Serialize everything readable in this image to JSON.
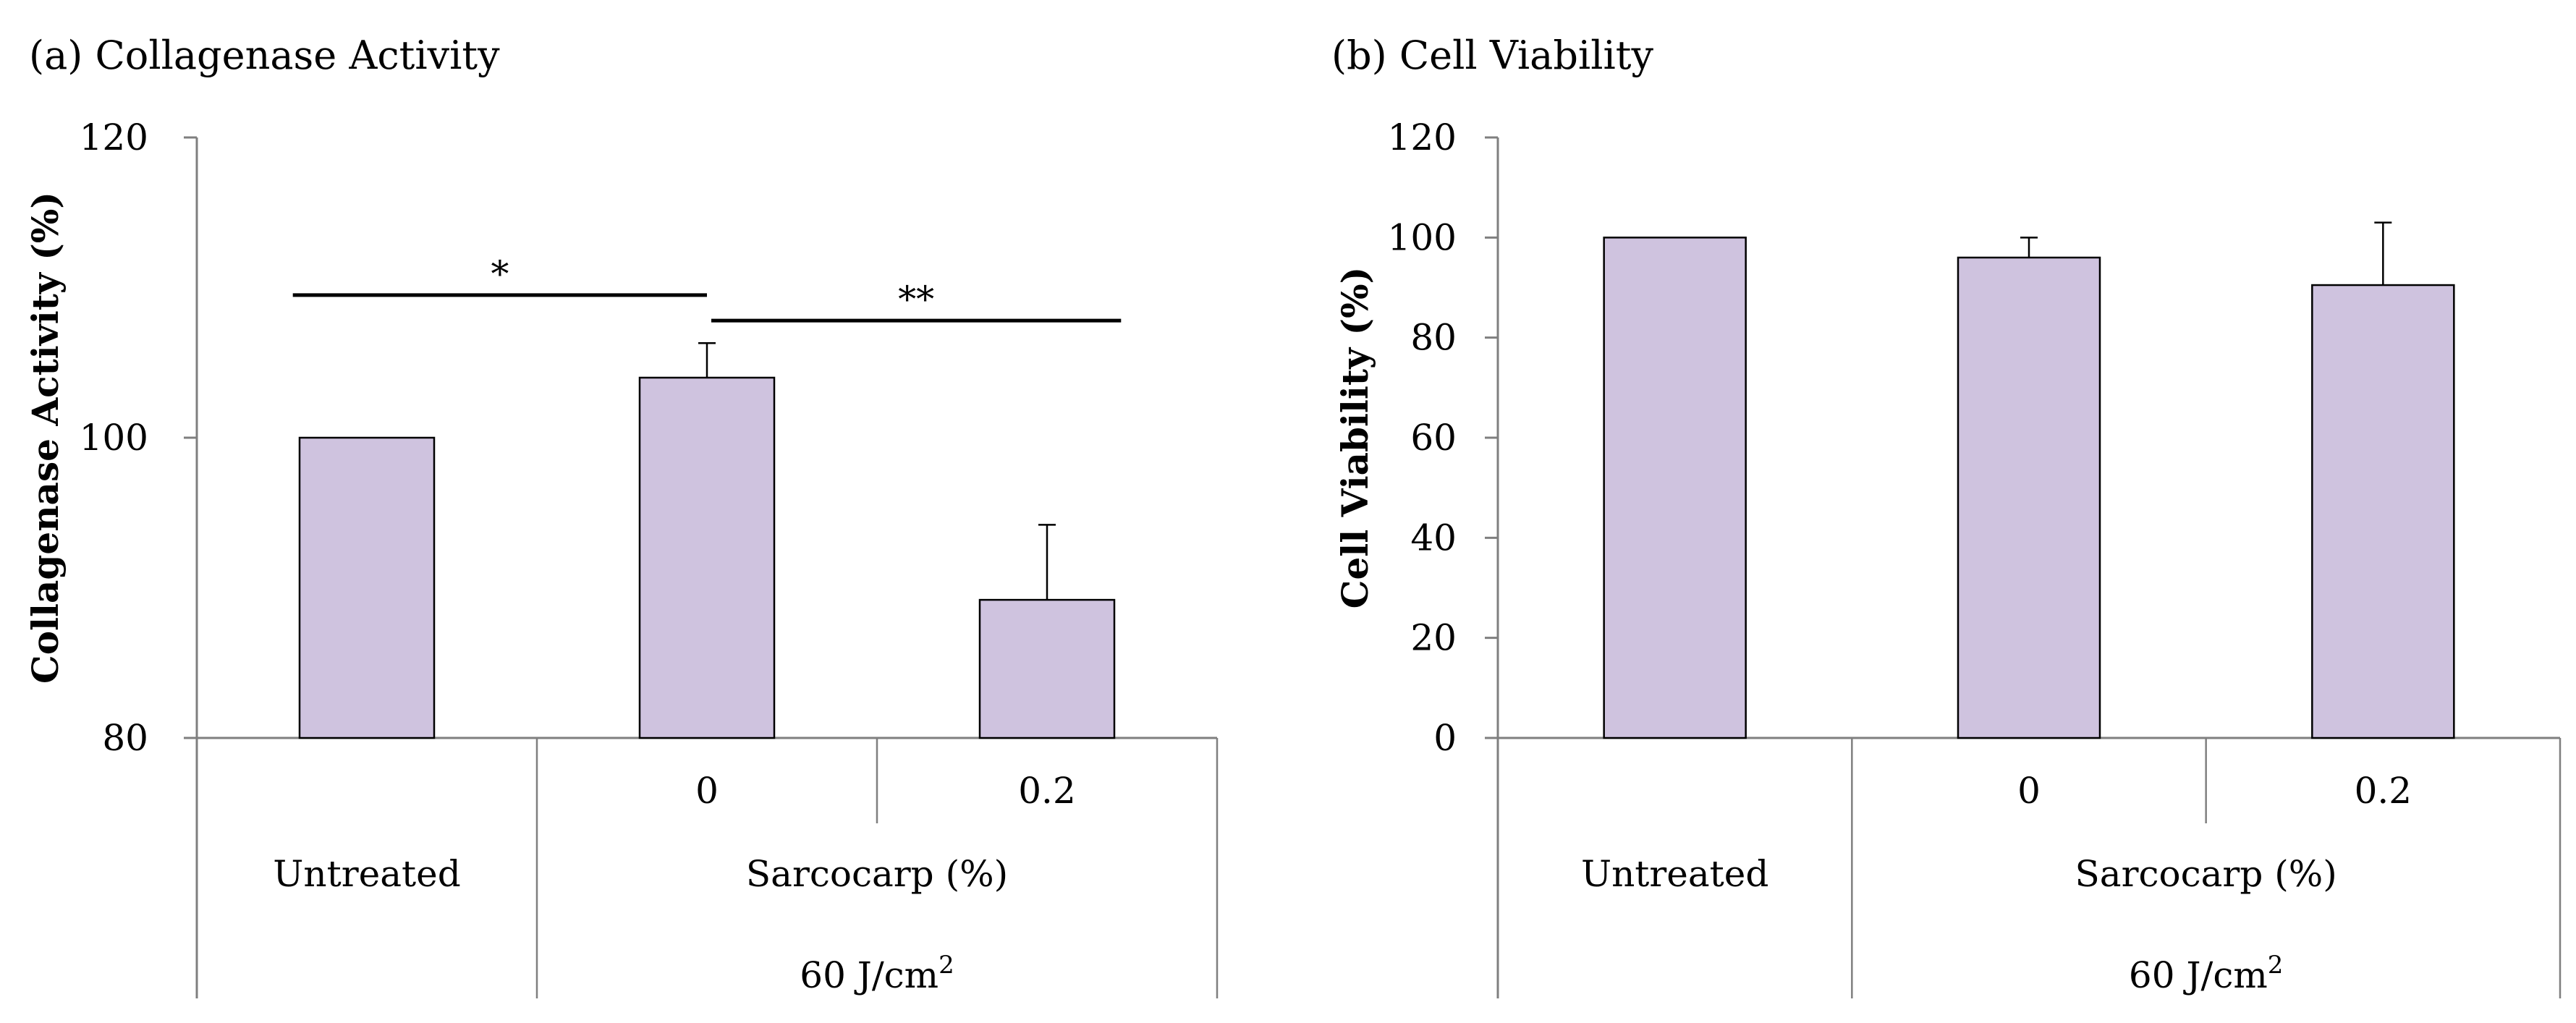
{
  "colors": {
    "bar_fill": "#cfc3df",
    "bar_stroke": "#000000",
    "axis": "#7f7f7f",
    "text": "#000000"
  },
  "chart_data": [
    {
      "type": "bar",
      "panel_title": "(a) Collagenase Activity",
      "ylabel": "Collagenase Activity (%)",
      "ylim": [
        80,
        120
      ],
      "yticks": [
        80,
        100,
        120
      ],
      "grid": false,
      "categories": [
        {
          "id": "untreated",
          "level1": "",
          "level2": "Untreated",
          "level3": ""
        },
        {
          "id": "sarcocarp-0",
          "level1": "0",
          "level2": "Sarcocarp (%)",
          "level3": "60 J/cm²"
        },
        {
          "id": "sarcocarp-0.2",
          "level1": "0.2",
          "level2": "Sarcocarp (%)",
          "level3": "60 J/cm²"
        }
      ],
      "values": [
        100,
        104,
        89.2
      ],
      "errors": [
        0,
        2.3,
        5
      ],
      "group_labels": {
        "sarcocarp": "Sarcocarp (%)",
        "dose_prefix": "60 J/cm",
        "dose_superscript": "2"
      },
      "significance": [
        {
          "from": 0,
          "to": 1,
          "label": "*",
          "y": 109.5
        },
        {
          "from": 1,
          "to": 2,
          "label": "**",
          "y": 107.8
        }
      ]
    },
    {
      "type": "bar",
      "panel_title": "(b) Cell Viability",
      "ylabel": "Cell Viability (%)",
      "ylim": [
        0,
        120
      ],
      "yticks": [
        0,
        20,
        40,
        60,
        80,
        100,
        120
      ],
      "grid": false,
      "categories": [
        {
          "id": "untreated",
          "level1": "",
          "level2": "Untreated",
          "level3": ""
        },
        {
          "id": "sarcocarp-0",
          "level1": "0",
          "level2": "Sarcocarp (%)",
          "level3": "60 J/cm²"
        },
        {
          "id": "sarcocarp-0.2",
          "level1": "0.2",
          "level2": "Sarcocarp (%)",
          "level3": "60 J/cm²"
        }
      ],
      "values": [
        100,
        96,
        90.5
      ],
      "errors": [
        0,
        4,
        12.5
      ],
      "group_labels": {
        "sarcocarp": "Sarcocarp (%)",
        "dose_prefix": "60 J/cm",
        "dose_superscript": "2"
      },
      "significance": []
    }
  ]
}
